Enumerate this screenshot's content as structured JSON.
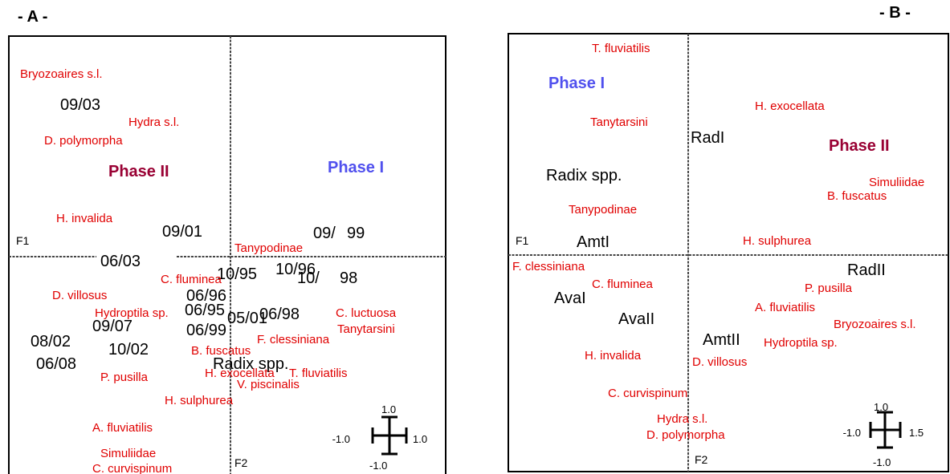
{
  "panels": [
    {
      "title": "- A -",
      "axis_1": "F1",
      "axis_2": "F2",
      "labels": [
        "Bryozoaires s.l.",
        "09/03",
        "Hydra s.l.",
        "D. polymorpha",
        "Phase II",
        "Phase I",
        "H. invalida",
        "09/01",
        "09/",
        "99",
        "Tanypodinae",
        "06/03",
        "10/95",
        "10/96",
        "10/",
        "98",
        "C. fluminea",
        "06/96",
        "D. villosus",
        "Hydroptila sp.",
        "06/95",
        "06/98",
        "05/01",
        "C. luctuosa",
        "Tanytarsini",
        "09/07",
        "06/99",
        "F. clessiniana",
        "08/02",
        "10/02",
        "B. fuscatus",
        "06/08",
        "Radix spp.",
        "H. exocellata",
        "T. fluviatilis",
        "P. pusilla",
        "V. piscinalis",
        "H. sulphurea",
        "A. fluviatilis",
        "Simuliidae",
        "C. curvispinum"
      ],
      "scale": [
        "1.0",
        "-1.0",
        "1.0",
        "-1.0"
      ]
    },
    {
      "title": "- B -",
      "axis_1": "F1",
      "axis_2": "F2",
      "labels": [
        "T. fluviatilis",
        "Phase I",
        "H. exocellata",
        "Tanytarsini",
        "RadI",
        "Phase II",
        "Simuliidae",
        "B. fuscatus",
        "Radix spp.",
        "Tanypodinae",
        "AmtI",
        "H. sulphurea",
        "F. clessiniana",
        "RadII",
        "C. fluminea",
        "P. pusilla",
        "AvaI",
        "A. fluviatilis",
        "AvaII",
        "Bryozoaires s.l.",
        "AmtII",
        "Hydroptila sp.",
        "H. invalida",
        "D. villosus",
        "C. curvispinum",
        "Hydra s.l.",
        "D. polymorpha"
      ],
      "scale": [
        "1.0",
        "-1.0",
        "1.5",
        "-1.0"
      ]
    }
  ]
}
